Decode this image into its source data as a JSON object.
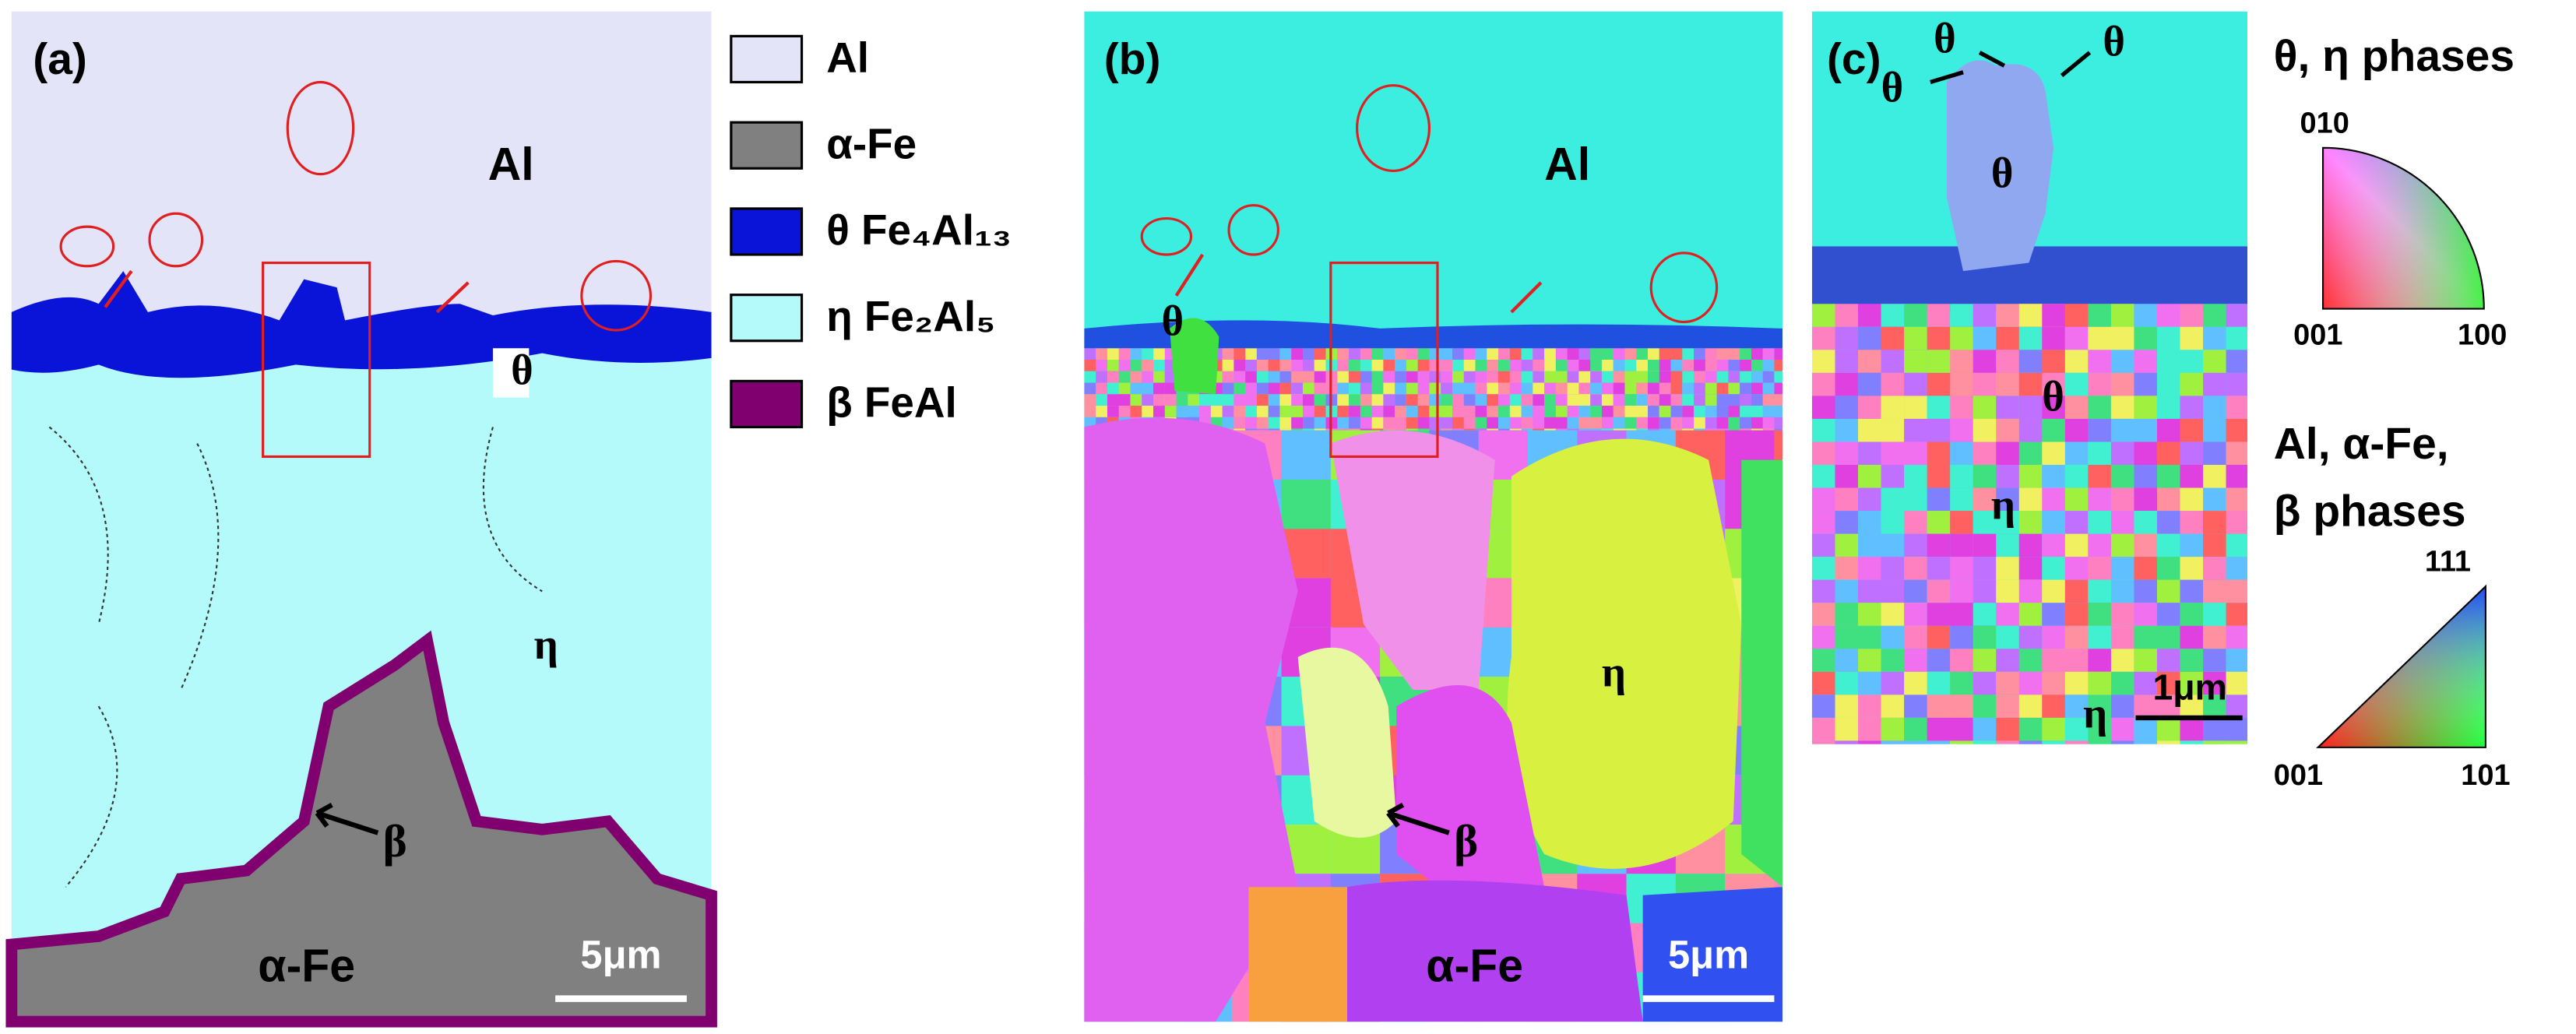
{
  "panel_a": {
    "label": "(a)",
    "matrix": "Al",
    "theta": "θ",
    "eta": "η",
    "beta": "β",
    "alpha_fe": "α-Fe",
    "scale_bar": "5μm"
  },
  "legend": {
    "items": [
      {
        "label": "Al",
        "color": "#e4e4f8"
      },
      {
        "label": "α-Fe",
        "color": "#808080"
      },
      {
        "label": "θ Fe₄Al₁₃",
        "color": "#0a14d8"
      },
      {
        "label": "η Fe₂Al₅",
        "color": "#b4fafa"
      },
      {
        "label": "β FeAl",
        "color": "#800070"
      }
    ]
  },
  "panel_b": {
    "label": "(b)",
    "matrix": "Al",
    "theta": "θ",
    "eta": "η",
    "beta": "β",
    "alpha_fe": "α-Fe",
    "scale_bar": "5μm"
  },
  "panel_c": {
    "label": "(c)",
    "theta_labels": [
      "θ",
      "θ",
      "θ",
      "θ",
      "θ"
    ],
    "eta_labels": [
      "η",
      "η"
    ],
    "scale_bar": "1μm"
  },
  "key": {
    "theta_eta_title": "θ, η phases",
    "theta_eta_corners": [
      "010",
      "001",
      "100"
    ],
    "cubic_title": [
      "Al, α-Fe,",
      "β phases"
    ],
    "cubic_corners": [
      "111",
      "001",
      "101"
    ]
  }
}
